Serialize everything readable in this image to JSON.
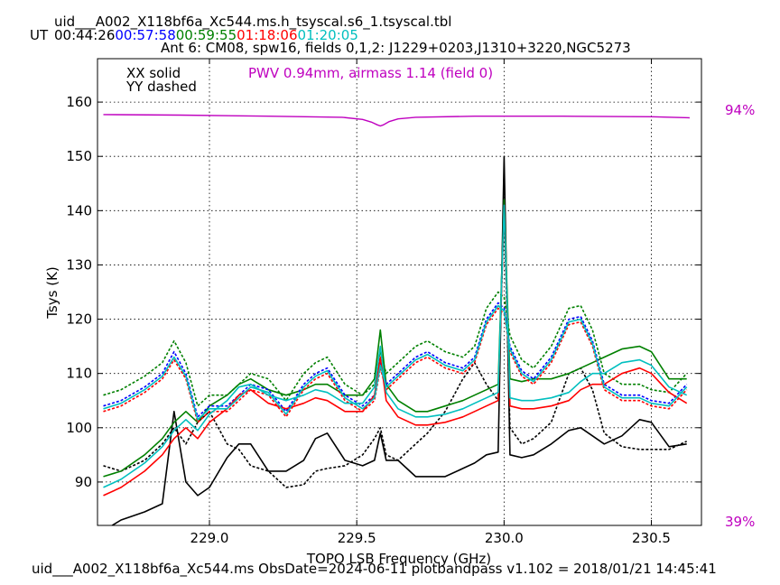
{
  "chart_data": {
    "type": "line",
    "title_file": "uid___A002_X118bf6a_Xc544.ms.h_tsyscal.s6_1.tsyscal.tbl",
    "ut_label": "UT",
    "times": [
      {
        "text": "00:44:26",
        "color": "#000000"
      },
      {
        "text": "00:57:58",
        "color": "#0000ff"
      },
      {
        "text": "00:59:55",
        "color": "#008000"
      },
      {
        "text": "01:18:06",
        "color": "#ff0000"
      },
      {
        "text": "01:20:05",
        "color": "#00bfbf"
      }
    ],
    "subtitle": "Ant 6: CM08,  spw16,  fields 0,1,2: J1229+0203,J1310+3220,NGC5273",
    "legend_solid": "XX solid",
    "legend_dashed": "YY dashed",
    "pwv_label": "PWV 0.94mm, airmass 1.14 (field 0)",
    "pwv_color": "#bf00bf",
    "right_top_label": "94%",
    "right_bottom_label": "39%",
    "xlabel": "TOPO LSB Frequency (GHz)",
    "ylabel": "Tsys (K)",
    "xlim": [
      228.62,
      230.67
    ],
    "ylim": [
      82,
      168
    ],
    "xticks": [
      229.0,
      229.5,
      230.0,
      230.5
    ],
    "xtick_labels": [
      "229.0",
      "229.5",
      "230.0",
      "230.5"
    ],
    "yticks": [
      90,
      100,
      110,
      120,
      130,
      140,
      150,
      160
    ],
    "ytick_labels": [
      "90",
      "100",
      "110",
      "120",
      "130",
      "140",
      "150",
      "160"
    ],
    "grid": true,
    "footer": "uid___A002_X118bf6a_Xc544.ms  ObsDate=2024-06-11   plotbandpass v1.102 = 2018/01/21 14:45:41",
    "x": [
      228.64,
      228.7,
      228.78,
      228.84,
      228.88,
      228.92,
      228.96,
      229.0,
      229.06,
      229.1,
      229.14,
      229.2,
      229.26,
      229.32,
      229.36,
      229.4,
      229.46,
      229.52,
      229.56,
      229.58,
      229.6,
      229.64,
      229.7,
      229.74,
      229.8,
      229.86,
      229.9,
      229.94,
      229.98,
      230.0,
      230.02,
      230.06,
      230.1,
      230.16,
      230.22,
      230.26,
      230.3,
      230.34,
      230.4,
      230.46,
      230.5,
      230.56,
      230.62
    ],
    "series": [
      {
        "name": "00:44:26 XX",
        "color": "#000000",
        "dash": false,
        "values": [
          81,
          83,
          84.5,
          86,
          103,
          90,
          87.5,
          89,
          94.5,
          97,
          97,
          92,
          92,
          94,
          98,
          99,
          94,
          93,
          94,
          99,
          94,
          94,
          91,
          91,
          91,
          92.5,
          93.5,
          95,
          95.5,
          150,
          95,
          94.5,
          95,
          97,
          99.5,
          100,
          98.5,
          97,
          98.5,
          101.5,
          101,
          96.5,
          97
        ]
      },
      {
        "name": "00:44:26 YY",
        "color": "#000000",
        "dash": true,
        "values": [
          93,
          92,
          94,
          97,
          100,
          97,
          101,
          103,
          97,
          96,
          93,
          92,
          89,
          89.5,
          92,
          92.5,
          93,
          95,
          98,
          100,
          95,
          94,
          97,
          99,
          103,
          109,
          112,
          108,
          105,
          140,
          100,
          97,
          98,
          101,
          110,
          111,
          107,
          99,
          96.5,
          96,
          96,
          96,
          97.5
        ]
      },
      {
        "name": "00:59:55 XX",
        "color": "#008000",
        "dash": false,
        "values": [
          91,
          92,
          95,
          98,
          101,
          103,
          101,
          104,
          106,
          108,
          109,
          107,
          106,
          107,
          108,
          108,
          106,
          106,
          109,
          118,
          108,
          105,
          103,
          103,
          104,
          105,
          106,
          107,
          108,
          142,
          109,
          108.5,
          109,
          109,
          110,
          111,
          112,
          113,
          114.5,
          115,
          114,
          109,
          109
        ]
      },
      {
        "name": "00:59:55 YY",
        "color": "#008000",
        "dash": true,
        "values": [
          106,
          107,
          109.5,
          112,
          116,
          112,
          104,
          106,
          106,
          108,
          110,
          109,
          105,
          110,
          112,
          113,
          108,
          106,
          108,
          114,
          110,
          112,
          115,
          116,
          114,
          113,
          115,
          122,
          125,
          124,
          117,
          112.5,
          111,
          115,
          122,
          122.5,
          118,
          110,
          108,
          108,
          107,
          106.5,
          110
        ]
      },
      {
        "name": "00:57:58 YY",
        "color": "#0000ff",
        "dash": true,
        "values": [
          104,
          105,
          107.5,
          110,
          114,
          110,
          102,
          104,
          104,
          106,
          108,
          107,
          103,
          108,
          110,
          111,
          106,
          104,
          106,
          112,
          108,
          110,
          113,
          114,
          112,
          111,
          113,
          120,
          123,
          122,
          115,
          110.5,
          109,
          113,
          120,
          120.5,
          116,
          108,
          106,
          106,
          105,
          104.5,
          108
        ]
      },
      {
        "name": "01:18:06 YY",
        "color": "#ff0000",
        "dash": true,
        "values": [
          103,
          104,
          106.5,
          109,
          112.5,
          109,
          101,
          103,
          103,
          105,
          107,
          106,
          102,
          107,
          109,
          110,
          105,
          103,
          105,
          111,
          107,
          109,
          112,
          113,
          111,
          110,
          112,
          119,
          122,
          121,
          114,
          109.5,
          108,
          112,
          119,
          119.5,
          115,
          107,
          105,
          105,
          104,
          103.5,
          107
        ]
      },
      {
        "name": "01:18:06 XX",
        "color": "#ff0000",
        "dash": false,
        "values": [
          87.5,
          89,
          92,
          95,
          98,
          100,
          98,
          101,
          103.5,
          106,
          107,
          104.5,
          103.5,
          104.5,
          105.5,
          105,
          103,
          103,
          106,
          113,
          105,
          102,
          100.5,
          100.5,
          101,
          102,
          103,
          104,
          105,
          141,
          104,
          103.5,
          103.5,
          104,
          105,
          107,
          108,
          108,
          110,
          111,
          110,
          106.5,
          104.5
        ]
      },
      {
        "name": "01:20:05 XX",
        "color": "#00bfbf",
        "dash": false,
        "values": [
          89,
          90.5,
          93.5,
          96.5,
          99.5,
          101.5,
          99.5,
          102.5,
          105,
          107.5,
          108,
          106,
          105,
          106,
          107,
          106.5,
          104.5,
          104.5,
          107.5,
          115,
          106.5,
          103.5,
          102,
          102,
          102.5,
          103.5,
          104.5,
          105.5,
          106.5,
          141,
          105.5,
          105,
          105,
          105.5,
          106.5,
          108.5,
          110,
          110,
          112,
          112.5,
          111.5,
          107.5,
          106
        ]
      },
      {
        "name": "01:20:05 YY",
        "color": "#00bfbf",
        "dash": false,
        "values": [
          103.5,
          104.5,
          107,
          109.5,
          113,
          109.5,
          101.5,
          103.5,
          103.5,
          105.5,
          107.5,
          106.5,
          102.5,
          107.5,
          109.5,
          110.5,
          105.5,
          103.5,
          105.5,
          111.5,
          107.5,
          109.5,
          112.5,
          113.5,
          111.5,
          110.5,
          112.5,
          119.5,
          122.5,
          121.5,
          114.5,
          110,
          108.5,
          112.5,
          119.5,
          120,
          115.5,
          107.5,
          105.5,
          105.5,
          104.5,
          104,
          107.5
        ]
      }
    ],
    "atm": {
      "name": "PWV transmission",
      "color": "#bf00bf",
      "x": [
        228.64,
        228.9,
        229.2,
        229.45,
        229.52,
        229.55,
        229.57,
        229.58,
        229.59,
        229.61,
        229.64,
        229.7,
        229.9,
        230.2,
        230.5,
        230.63
      ],
      "values": [
        157.7,
        157.6,
        157.4,
        157.2,
        156.8,
        156.3,
        155.8,
        155.6,
        155.8,
        156.4,
        156.9,
        157.2,
        157.4,
        157.4,
        157.3,
        157.1
      ]
    }
  }
}
